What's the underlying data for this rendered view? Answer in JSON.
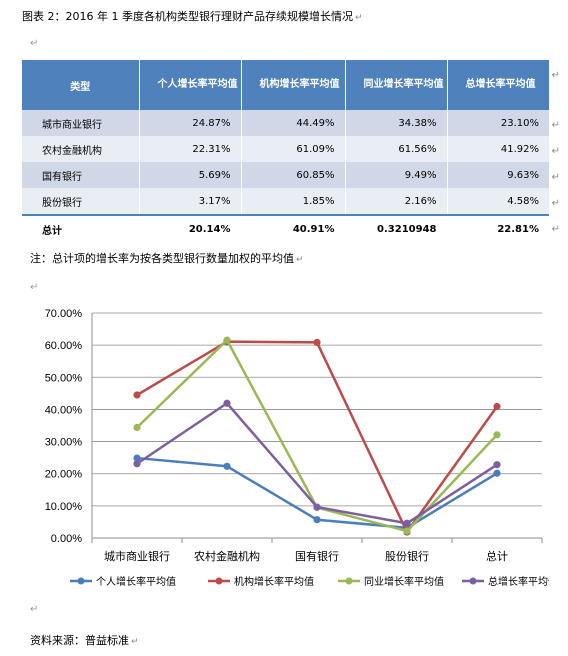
{
  "caption": "图表 2：2016 年 1 季度各机构类型银行理财产品存续规模增长情况",
  "table": {
    "headers": [
      "类型",
      "个人增长率平均值",
      "机构增长率平均值",
      "同业增长率平均值",
      "总增长率平均值"
    ],
    "rows": [
      [
        "城市商业银行",
        "24.87%",
        "44.49%",
        "34.38%",
        "23.10%"
      ],
      [
        "农村金融机构",
        "22.31%",
        "61.09%",
        "61.56%",
        "41.92%"
      ],
      [
        "国有银行",
        "5.69%",
        "60.85%",
        "9.49%",
        "9.63%"
      ],
      [
        "股份银行",
        "3.17%",
        "1.85%",
        "2.16%",
        "4.58%"
      ],
      [
        "总计",
        "20.14%",
        "40.91%",
        "0.3210948",
        "22.81%"
      ]
    ]
  },
  "note": "注：总计项的增长率为按各类型银行数量加权的平均值",
  "source": "资料来源：普益标准",
  "chart_data": {
    "type": "line",
    "categories": [
      "城市商业银行",
      "农村金融机构",
      "国有银行",
      "股份银行",
      "总计"
    ],
    "y_ticks": [
      "0.00%",
      "10.00%",
      "20.00%",
      "30.00%",
      "40.00%",
      "50.00%",
      "60.00%",
      "70.00%"
    ],
    "ylim": [
      0,
      70
    ],
    "grid": true,
    "legend_position": "bottom",
    "series": [
      {
        "name": "个人增长率平均值",
        "color": "#4a7ebb",
        "values": [
          24.87,
          22.31,
          5.69,
          3.17,
          20.14
        ]
      },
      {
        "name": "机构增长率平均值",
        "color": "#be4b48",
        "values": [
          44.49,
          61.09,
          60.85,
          1.85,
          40.91
        ]
      },
      {
        "name": "同业增长率平均值",
        "color": "#98b954",
        "values": [
          34.38,
          61.56,
          9.49,
          2.16,
          32.11
        ]
      },
      {
        "name": "总增长率平均值",
        "color": "#7d5fa0",
        "values": [
          23.1,
          41.92,
          9.63,
          4.58,
          22.81
        ]
      }
    ]
  }
}
